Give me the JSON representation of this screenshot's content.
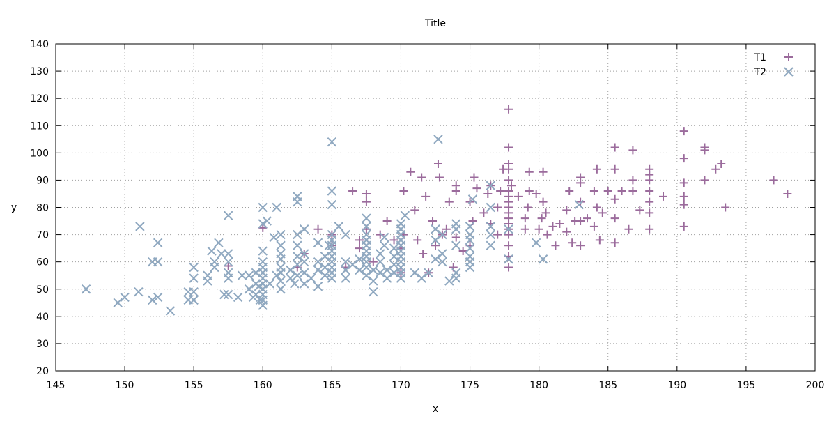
{
  "chart_data": {
    "type": "scatter",
    "title": "Title",
    "xlabel": "x",
    "ylabel": "y",
    "xlim": [
      145,
      200
    ],
    "ylim": [
      20,
      140
    ],
    "x_ticks": [
      145,
      150,
      155,
      160,
      165,
      170,
      175,
      180,
      185,
      190,
      195,
      200
    ],
    "y_ticks": [
      20,
      30,
      40,
      50,
      60,
      70,
      80,
      90,
      100,
      110,
      120,
      130,
      140
    ],
    "grid": true,
    "legend_position": "top-right",
    "series": [
      {
        "name": "T1",
        "marker": "plus",
        "color": "#9b6b9c",
        "points": [
          [
            157.5,
            58.5
          ],
          [
            160,
            72.5
          ],
          [
            162.5,
            58
          ],
          [
            163,
            63
          ],
          [
            164,
            72
          ],
          [
            165,
            66
          ],
          [
            165,
            70
          ],
          [
            166,
            58
          ],
          [
            166.5,
            86
          ],
          [
            167,
            65
          ],
          [
            167,
            68
          ],
          [
            167.5,
            72
          ],
          [
            167.5,
            82
          ],
          [
            167.5,
            85
          ],
          [
            168,
            60
          ],
          [
            168.5,
            70
          ],
          [
            169,
            75
          ],
          [
            169.5,
            68
          ],
          [
            170,
            56
          ],
          [
            170,
            65
          ],
          [
            170.2,
            70
          ],
          [
            170.2,
            86
          ],
          [
            170.7,
            93
          ],
          [
            171,
            79
          ],
          [
            171.2,
            68
          ],
          [
            171.5,
            91
          ],
          [
            171.6,
            63
          ],
          [
            171.8,
            84
          ],
          [
            172,
            56
          ],
          [
            172.3,
            75
          ],
          [
            172.5,
            66
          ],
          [
            172.7,
            96
          ],
          [
            172.8,
            91
          ],
          [
            173,
            70
          ],
          [
            173.3,
            72
          ],
          [
            173.5,
            82
          ],
          [
            173.8,
            58
          ],
          [
            174,
            69
          ],
          [
            174,
            86
          ],
          [
            174,
            88
          ],
          [
            174.5,
            64
          ],
          [
            175,
            66
          ],
          [
            175,
            82
          ],
          [
            175.2,
            75
          ],
          [
            175.3,
            91
          ],
          [
            175.5,
            87
          ],
          [
            176,
            78
          ],
          [
            176.3,
            85
          ],
          [
            176.5,
            74
          ],
          [
            176.5,
            88
          ],
          [
            177,
            70
          ],
          [
            177,
            80
          ],
          [
            177.2,
            86
          ],
          [
            177.4,
            94
          ],
          [
            177.8,
            58
          ],
          [
            177.8,
            62
          ],
          [
            177.8,
            66
          ],
          [
            177.8,
            70
          ],
          [
            177.8,
            72
          ],
          [
            177.8,
            74
          ],
          [
            177.8,
            76
          ],
          [
            177.8,
            78
          ],
          [
            177.8,
            80
          ],
          [
            177.8,
            82
          ],
          [
            177.8,
            84
          ],
          [
            177.8,
            86
          ],
          [
            177.8,
            90
          ],
          [
            177.8,
            94
          ],
          [
            177.8,
            96
          ],
          [
            177.8,
            102
          ],
          [
            177.8,
            116
          ],
          [
            178,
            88
          ],
          [
            178.5,
            84
          ],
          [
            179,
            72
          ],
          [
            179,
            76
          ],
          [
            179.2,
            80
          ],
          [
            179.3,
            86
          ],
          [
            179.3,
            93
          ],
          [
            179.8,
            85
          ],
          [
            180,
            72
          ],
          [
            180.2,
            76
          ],
          [
            180.3,
            82
          ],
          [
            180.3,
            93
          ],
          [
            180.5,
            78
          ],
          [
            180.6,
            70
          ],
          [
            181,
            73
          ],
          [
            181.2,
            66
          ],
          [
            181.5,
            74
          ],
          [
            182,
            71
          ],
          [
            182,
            79
          ],
          [
            182.2,
            86
          ],
          [
            182.4,
            67
          ],
          [
            182.6,
            75
          ],
          [
            183,
            66
          ],
          [
            183,
            75
          ],
          [
            183,
            82
          ],
          [
            183,
            89
          ],
          [
            183,
            91
          ],
          [
            183.5,
            76
          ],
          [
            184,
            73
          ],
          [
            184,
            86
          ],
          [
            184.2,
            80
          ],
          [
            184.2,
            94
          ],
          [
            184.4,
            68
          ],
          [
            184.6,
            78
          ],
          [
            185,
            86
          ],
          [
            185.5,
            67
          ],
          [
            185.5,
            76
          ],
          [
            185.5,
            83
          ],
          [
            185.5,
            94
          ],
          [
            185.5,
            102
          ],
          [
            186,
            86
          ],
          [
            186.5,
            72
          ],
          [
            186.8,
            86
          ],
          [
            186.8,
            90
          ],
          [
            186.8,
            101
          ],
          [
            187.3,
            79
          ],
          [
            188,
            72
          ],
          [
            188,
            78
          ],
          [
            188,
            82
          ],
          [
            188,
            86
          ],
          [
            188,
            90
          ],
          [
            188,
            92
          ],
          [
            188,
            94
          ],
          [
            189,
            84
          ],
          [
            190.5,
            73
          ],
          [
            190.5,
            81
          ],
          [
            190.5,
            84
          ],
          [
            190.5,
            89
          ],
          [
            190.5,
            98
          ],
          [
            190.5,
            108
          ],
          [
            192,
            90
          ],
          [
            192,
            101
          ],
          [
            192,
            102
          ],
          [
            192.8,
            94
          ],
          [
            193.2,
            96
          ],
          [
            193.5,
            80
          ],
          [
            197,
            90
          ],
          [
            198,
            85
          ]
        ]
      },
      {
        "name": "T2",
        "marker": "cross",
        "color": "#8fa8c0",
        "points": [
          [
            147.2,
            50
          ],
          [
            149.5,
            45
          ],
          [
            150,
            47
          ],
          [
            151,
            49
          ],
          [
            151.1,
            73
          ],
          [
            152,
            46
          ],
          [
            152,
            60
          ],
          [
            152.4,
            47
          ],
          [
            152.4,
            60
          ],
          [
            152.4,
            67
          ],
          [
            153.3,
            42
          ],
          [
            154.6,
            46
          ],
          [
            154.6,
            49
          ],
          [
            155,
            46
          ],
          [
            155,
            49
          ],
          [
            155,
            54
          ],
          [
            155,
            58
          ],
          [
            156,
            53
          ],
          [
            156,
            55
          ],
          [
            156.3,
            64
          ],
          [
            156.5,
            60
          ],
          [
            156.5,
            58
          ],
          [
            156.8,
            67
          ],
          [
            157,
            63
          ],
          [
            157.2,
            48
          ],
          [
            157.5,
            48
          ],
          [
            157.5,
            54
          ],
          [
            157.5,
            56
          ],
          [
            157.5,
            60
          ],
          [
            157.5,
            63
          ],
          [
            157.5,
            77
          ],
          [
            158.2,
            47
          ],
          [
            158.5,
            55
          ],
          [
            159,
            50
          ],
          [
            159,
            55
          ],
          [
            159.3,
            47
          ],
          [
            159.5,
            48
          ],
          [
            159.5,
            52
          ],
          [
            159.5,
            56
          ],
          [
            159.7,
            51
          ],
          [
            159.8,
            46
          ],
          [
            160,
            44
          ],
          [
            160,
            46
          ],
          [
            160,
            48
          ],
          [
            160,
            50
          ],
          [
            160,
            52
          ],
          [
            160,
            54
          ],
          [
            160,
            56
          ],
          [
            160,
            58
          ],
          [
            160,
            60
          ],
          [
            160,
            64
          ],
          [
            160,
            74
          ],
          [
            160,
            80
          ],
          [
            160.3,
            75
          ],
          [
            160.5,
            52
          ],
          [
            160.8,
            69
          ],
          [
            161,
            55
          ],
          [
            161,
            80
          ],
          [
            161.3,
            50
          ],
          [
            161.3,
            53
          ],
          [
            161.3,
            56
          ],
          [
            161.3,
            58
          ],
          [
            161.3,
            61
          ],
          [
            161.3,
            63
          ],
          [
            161.3,
            66
          ],
          [
            161.3,
            70
          ],
          [
            162,
            54
          ],
          [
            162,
            57
          ],
          [
            162.3,
            52
          ],
          [
            162.5,
            55
          ],
          [
            162.5,
            59
          ],
          [
            162.5,
            62
          ],
          [
            162.5,
            66
          ],
          [
            162.5,
            70
          ],
          [
            162.5,
            82
          ],
          [
            162.5,
            84
          ],
          [
            163,
            52
          ],
          [
            163,
            56
          ],
          [
            163,
            60
          ],
          [
            163,
            63
          ],
          [
            163,
            72
          ],
          [
            163.5,
            54
          ],
          [
            164,
            51
          ],
          [
            164,
            57
          ],
          [
            164,
            60
          ],
          [
            164,
            67
          ],
          [
            164.5,
            55
          ],
          [
            164.5,
            58
          ],
          [
            164.5,
            62
          ],
          [
            164.8,
            66
          ],
          [
            165,
            54
          ],
          [
            165,
            56
          ],
          [
            165,
            58
          ],
          [
            165,
            60
          ],
          [
            165,
            62
          ],
          [
            165,
            64
          ],
          [
            165,
            66
          ],
          [
            165,
            68
          ],
          [
            165,
            70
          ],
          [
            165,
            81
          ],
          [
            165,
            86
          ],
          [
            165,
            104
          ],
          [
            165.5,
            73
          ],
          [
            166,
            54
          ],
          [
            166,
            57
          ],
          [
            166,
            60
          ],
          [
            166,
            70
          ],
          [
            166.5,
            59
          ],
          [
            167,
            57
          ],
          [
            167,
            61
          ],
          [
            167.5,
            55
          ],
          [
            167.5,
            58
          ],
          [
            167.5,
            60
          ],
          [
            167.5,
            62
          ],
          [
            167.5,
            64
          ],
          [
            167.5,
            66
          ],
          [
            167.5,
            68
          ],
          [
            167.5,
            70
          ],
          [
            167.5,
            73
          ],
          [
            167.5,
            76
          ],
          [
            168,
            49
          ],
          [
            168,
            53
          ],
          [
            168,
            57
          ],
          [
            168.5,
            56
          ],
          [
            168.5,
            60
          ],
          [
            168.5,
            63
          ],
          [
            168.8,
            66
          ],
          [
            168.8,
            69
          ],
          [
            169,
            54
          ],
          [
            169,
            57
          ],
          [
            169.5,
            56
          ],
          [
            169.5,
            59
          ],
          [
            169.5,
            62
          ],
          [
            169.5,
            65
          ],
          [
            170,
            54
          ],
          [
            170,
            56
          ],
          [
            170,
            58
          ],
          [
            170,
            60
          ],
          [
            170,
            62
          ],
          [
            170,
            64
          ],
          [
            170,
            66
          ],
          [
            170,
            68
          ],
          [
            170,
            70
          ],
          [
            170,
            72
          ],
          [
            170,
            74
          ],
          [
            170.3,
            77
          ],
          [
            171,
            56
          ],
          [
            171.5,
            54
          ],
          [
            172,
            56
          ],
          [
            172.5,
            61
          ],
          [
            172.5,
            68
          ],
          [
            172.5,
            72
          ],
          [
            172.7,
            105
          ],
          [
            173,
            60
          ],
          [
            173,
            63
          ],
          [
            173,
            70
          ],
          [
            173.5,
            53
          ],
          [
            174,
            54
          ],
          [
            174,
            56
          ],
          [
            174,
            66
          ],
          [
            174,
            72
          ],
          [
            174,
            74
          ],
          [
            175,
            58
          ],
          [
            175,
            60
          ],
          [
            175,
            62
          ],
          [
            175,
            65
          ],
          [
            175,
            68
          ],
          [
            175,
            70
          ],
          [
            175,
            73
          ],
          [
            175.2,
            83
          ],
          [
            176.5,
            66
          ],
          [
            176.5,
            70
          ],
          [
            176.5,
            73
          ],
          [
            176.5,
            80
          ],
          [
            176.5,
            88
          ],
          [
            177.8,
            61
          ],
          [
            177.8,
            72
          ],
          [
            179.8,
            67
          ],
          [
            180.3,
            61
          ],
          [
            182.9,
            81
          ]
        ]
      }
    ]
  }
}
